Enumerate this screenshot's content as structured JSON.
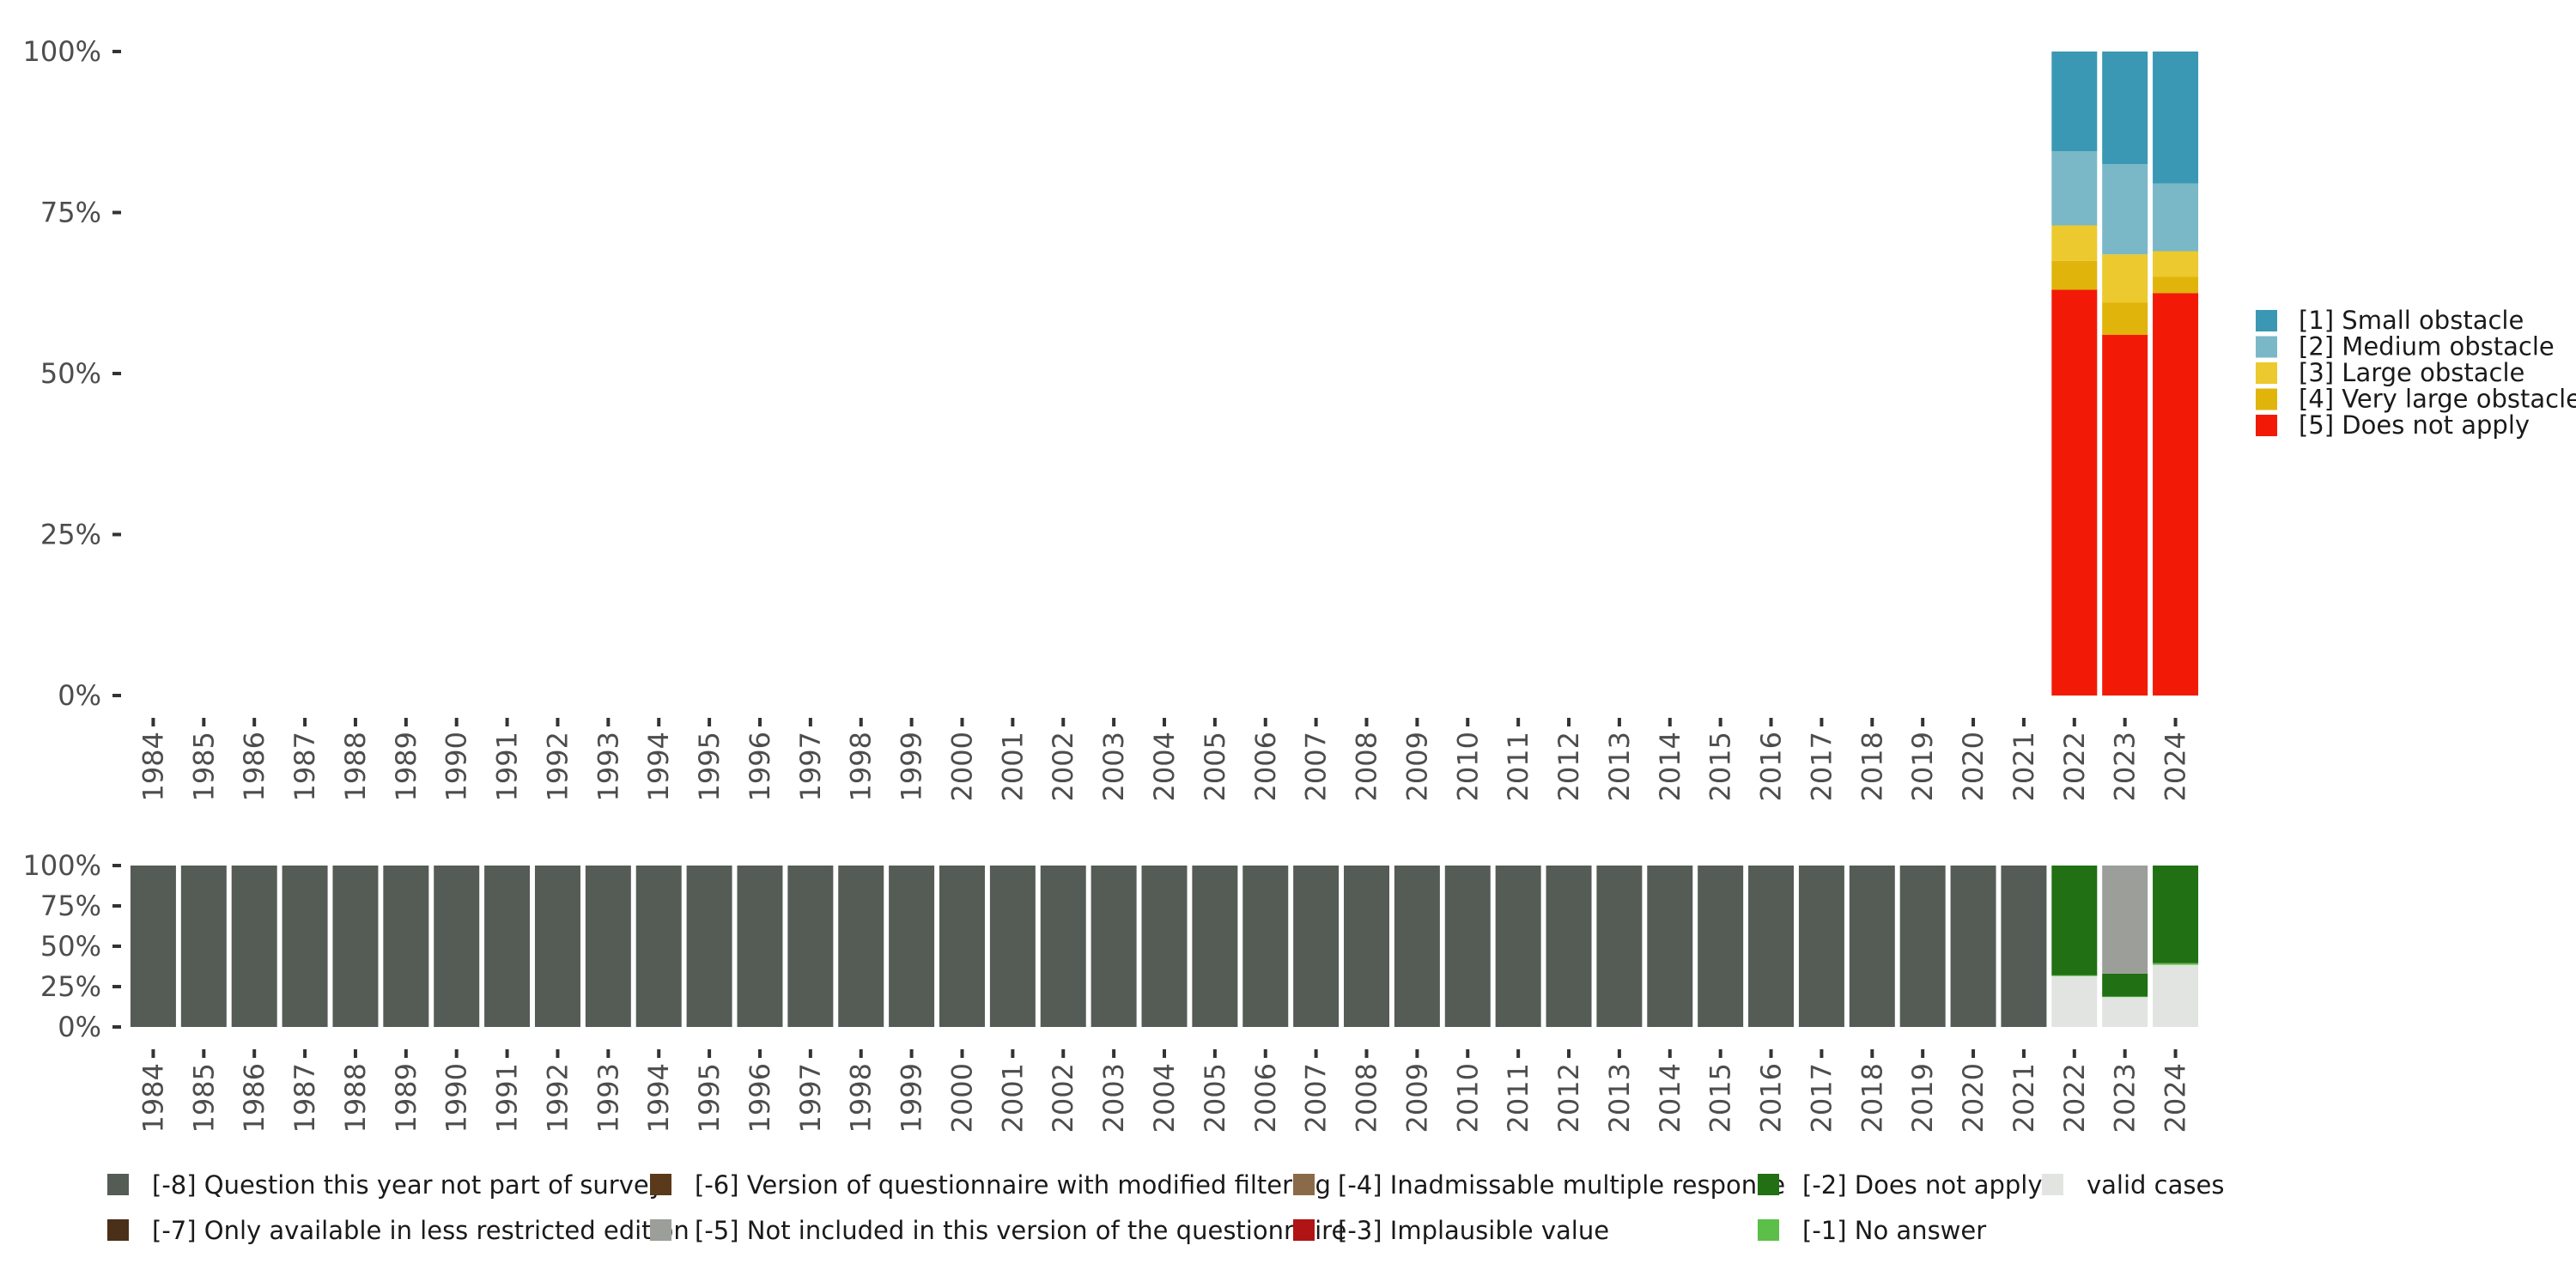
{
  "chart_data": [
    {
      "type": "bar",
      "stacked": true,
      "title": "",
      "xlabel": "",
      "ylabel": "",
      "categories": [
        "1984",
        "1985",
        "1986",
        "1987",
        "1988",
        "1989",
        "1990",
        "1991",
        "1992",
        "1993",
        "1994",
        "1995",
        "1996",
        "1997",
        "1998",
        "1999",
        "2000",
        "2001",
        "2002",
        "2003",
        "2004",
        "2005",
        "2006",
        "2007",
        "2008",
        "2009",
        "2010",
        "2011",
        "2012",
        "2013",
        "2014",
        "2015",
        "2016",
        "2017",
        "2018",
        "2019",
        "2020",
        "2021",
        "2022",
        "2023",
        "2024"
      ],
      "y_ticks": [
        "0%",
        "25%",
        "50%",
        "75%",
        "100%"
      ],
      "ylim": [
        0,
        100
      ],
      "legend_position": "right",
      "grid": false,
      "series": [
        {
          "name": "[5] Does not apply",
          "color": "#f21a07",
          "values": {
            "2022": 63,
            "2023": 56,
            "2024": 62.5
          }
        },
        {
          "name": "[4] Very large obstacle",
          "color": "#e0b40a",
          "values": {
            "2022": 4.5,
            "2023": 5,
            "2024": 2.5
          }
        },
        {
          "name": "[3] Large obstacle",
          "color": "#ecc92e",
          "values": {
            "2022": 5.5,
            "2023": 7.5,
            "2024": 4
          }
        },
        {
          "name": "[2] Medium obstacle",
          "color": "#7ab8c8",
          "values": {
            "2022": 11.5,
            "2023": 14,
            "2024": 10.5
          }
        },
        {
          "name": "[1] Small obstacle",
          "color": "#3a98b4",
          "values": {
            "2022": 15.5,
            "2023": 17.5,
            "2024": 20.5
          }
        }
      ],
      "legend_order": [
        "[1] Small obstacle",
        "[2] Medium obstacle",
        "[3] Large obstacle",
        "[4] Very large obstacle",
        "[5] Does not apply"
      ]
    },
    {
      "type": "bar",
      "stacked": true,
      "title": "",
      "xlabel": "",
      "ylabel": "",
      "categories": [
        "1984",
        "1985",
        "1986",
        "1987",
        "1988",
        "1989",
        "1990",
        "1991",
        "1992",
        "1993",
        "1994",
        "1995",
        "1996",
        "1997",
        "1998",
        "1999",
        "2000",
        "2001",
        "2002",
        "2003",
        "2004",
        "2005",
        "2006",
        "2007",
        "2008",
        "2009",
        "2010",
        "2011",
        "2012",
        "2013",
        "2014",
        "2015",
        "2016",
        "2017",
        "2018",
        "2019",
        "2020",
        "2021",
        "2022",
        "2023",
        "2024"
      ],
      "y_ticks": [
        "0%",
        "25%",
        "50%",
        "75%",
        "100%"
      ],
      "ylim": [
        0,
        100
      ],
      "legend_position": "bottom",
      "grid": false,
      "series": [
        {
          "name": "valid cases",
          "color": "#e2e4e1",
          "values": {
            "2022": 31.5,
            "2023": 18.5,
            "2024": 38.5
          }
        },
        {
          "name": "[-1] No answer",
          "color": "#5cbf4a",
          "values": {
            "2022": 0.5,
            "2023": 0.3,
            "2024": 1
          }
        },
        {
          "name": "[-2] Does not apply",
          "color": "#217013",
          "values": {
            "2022": 68,
            "2023": 14.2,
            "2024": 60.5
          }
        },
        {
          "name": "[-3] Implausible value",
          "color": "#b01414",
          "values": {}
        },
        {
          "name": "[-4] Inadmissable multiple response",
          "color": "#8b6a4a",
          "values": {}
        },
        {
          "name": "[-5] Not included in this version of the questionnaire",
          "color": "#9b9e99",
          "values": {
            "2023": 67
          }
        },
        {
          "name": "[-6] Version of questionnaire with modified filtering",
          "color": "#5a3a1a",
          "values": {}
        },
        {
          "name": "[-7] Only available in less restricted edition",
          "color": "#4a3018",
          "values": {}
        },
        {
          "name": "[-8] Question this year not part of survey",
          "color": "#555b55",
          "values": {
            "1984": 100,
            "1985": 100,
            "1986": 100,
            "1987": 100,
            "1988": 100,
            "1989": 100,
            "1990": 100,
            "1991": 100,
            "1992": 100,
            "1993": 100,
            "1994": 100,
            "1995": 100,
            "1996": 100,
            "1997": 100,
            "1998": 100,
            "1999": 100,
            "2000": 100,
            "2001": 100,
            "2002": 100,
            "2003": 100,
            "2004": 100,
            "2005": 100,
            "2006": 100,
            "2007": 100,
            "2008": 100,
            "2009": 100,
            "2010": 100,
            "2011": 100,
            "2012": 100,
            "2013": 100,
            "2014": 100,
            "2015": 100,
            "2016": 100,
            "2017": 100,
            "2018": 100,
            "2019": 100,
            "2020": 100,
            "2021": 100
          }
        }
      ],
      "legend_rows": [
        [
          "[-8] Question this year not part of survey",
          "[-6] Version of questionnaire with modified filtering",
          "[-4] Inadmissable multiple response",
          "[-2] Does not apply",
          "valid cases"
        ],
        [
          "[-7] Only available in less restricted edition",
          "[-5] Not included in this version of the questionnaire",
          "[-3] Implausible value",
          "[-1] No answer"
        ]
      ]
    }
  ]
}
